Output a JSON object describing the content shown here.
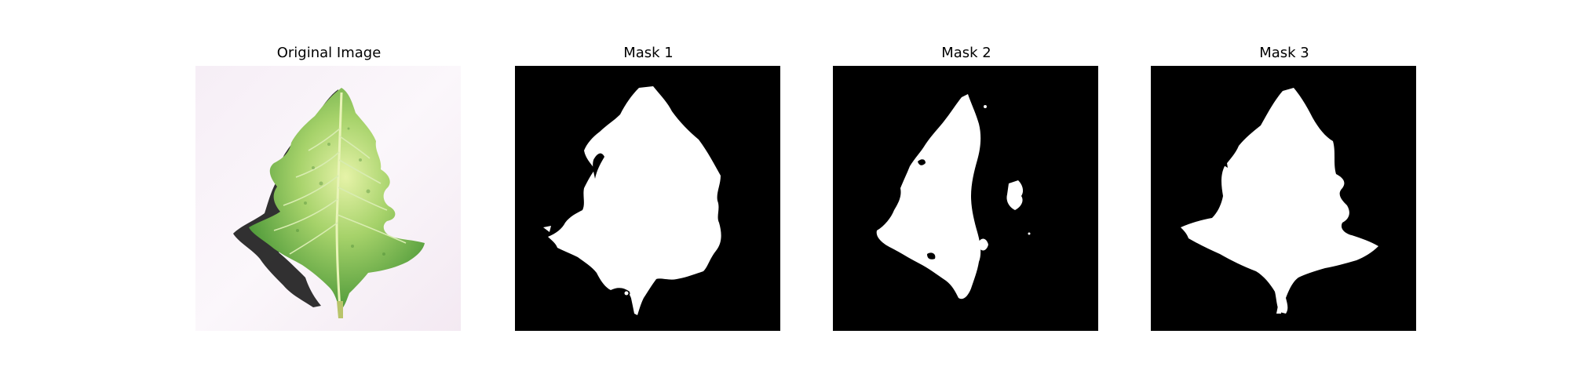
{
  "figure": {
    "panels": [
      {
        "title": "Original Image",
        "kind": "photo",
        "subject": "leaf-icon"
      },
      {
        "title": "Mask 1",
        "kind": "mask"
      },
      {
        "title": "Mask 2",
        "kind": "mask"
      },
      {
        "title": "Mask 3",
        "kind": "mask"
      }
    ],
    "colors": {
      "background": "#ffffff",
      "mask_background": "#000000",
      "mask_foreground": "#ffffff",
      "leaf_dark": "#4f9a3a",
      "leaf_light": "#c9e38a",
      "shadow": "#1a1a1a"
    }
  }
}
